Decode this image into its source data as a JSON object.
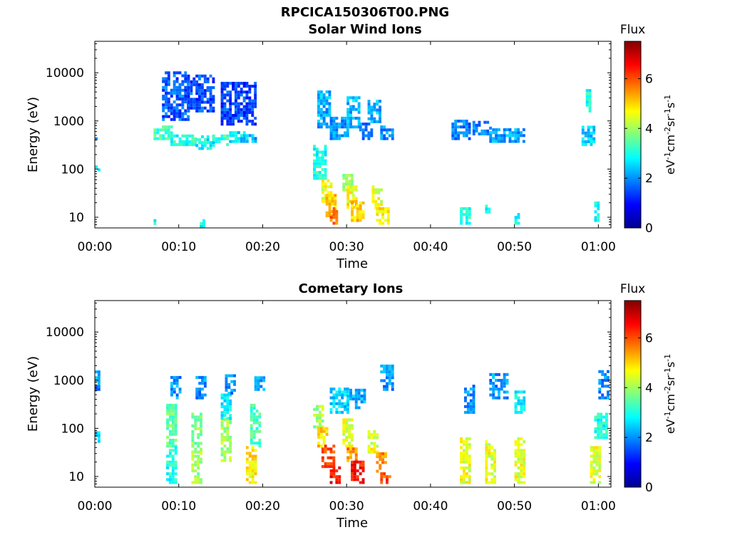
{
  "figure": {
    "title_line1": "RPCICA150306T00.PNG",
    "title_line2": "Solar Wind Ions"
  },
  "chart_data": [
    {
      "type": "heatmap",
      "title": "Solar Wind Ions",
      "xlabel": "Time",
      "ylabel": "Energy (eV)",
      "x_ticks": [
        "00:00",
        "00:10",
        "00:20",
        "00:30",
        "00:40",
        "00:50",
        "01:00"
      ],
      "y_ticks": [
        "10",
        "100",
        "1000",
        "10000"
      ],
      "y_scale": "log",
      "xlim_minutes": [
        0,
        61.5
      ],
      "ylim": [
        6,
        45000
      ],
      "colorbar": {
        "title": "Flux",
        "label": "eV-1cm-2sr-1s-1",
        "ticks": [
          "0",
          "2",
          "4",
          "6"
        ],
        "range": [
          0,
          7.5
        ]
      },
      "blobs": [
        {
          "t": [
            7,
            9
          ],
          "e": [
            400,
            700
          ],
          "v": 3.3
        },
        {
          "t": [
            9,
            10.5
          ],
          "e": [
            300,
            500
          ],
          "v": 3
        },
        {
          "t": [
            10.5,
            12
          ],
          "e": [
            300,
            500
          ],
          "v": 3.1
        },
        {
          "t": [
            12,
            14
          ],
          "e": [
            250,
            450
          ],
          "v": 2.8
        },
        {
          "t": [
            14,
            16
          ],
          "e": [
            300,
            500
          ],
          "v": 3.2
        },
        {
          "t": [
            16,
            18
          ],
          "e": [
            350,
            600
          ],
          "v": 2.6
        },
        {
          "t": [
            18,
            19
          ],
          "e": [
            350,
            500
          ],
          "v": 2.2
        },
        {
          "t": [
            8,
            11
          ],
          "e": [
            1000,
            10000
          ],
          "v": 1.6
        },
        {
          "t": [
            11,
            14
          ],
          "e": [
            1500,
            8000
          ],
          "v": 1.5
        },
        {
          "t": [
            15,
            19
          ],
          "e": [
            800,
            6000
          ],
          "v": 1.4
        },
        {
          "t": [
            26,
            27.5
          ],
          "e": [
            60,
            300
          ],
          "v": 3
        },
        {
          "t": [
            27,
            28
          ],
          "e": [
            20,
            60
          ],
          "v": 4.5
        },
        {
          "t": [
            27.5,
            28.5
          ],
          "e": [
            10,
            30
          ],
          "v": 5
        },
        {
          "t": [
            28,
            28.8
          ],
          "e": [
            7,
            15
          ],
          "v": 5.8
        },
        {
          "t": [
            29.5,
            30.5
          ],
          "e": [
            30,
            70
          ],
          "v": 4
        },
        {
          "t": [
            30,
            31
          ],
          "e": [
            15,
            40
          ],
          "v": 4.8
        },
        {
          "t": [
            30.5,
            32
          ],
          "e": [
            8,
            20
          ],
          "v": 5
        },
        {
          "t": [
            33,
            34
          ],
          "e": [
            15,
            40
          ],
          "v": 4.5
        },
        {
          "t": [
            33.5,
            35
          ],
          "e": [
            7,
            15
          ],
          "v": 4.8
        },
        {
          "t": [
            26.5,
            28
          ],
          "e": [
            700,
            4000
          ],
          "v": 2.2
        },
        {
          "t": [
            28,
            30
          ],
          "e": [
            400,
            1200
          ],
          "v": 2
        },
        {
          "t": [
            30,
            31.5
          ],
          "e": [
            700,
            3000
          ],
          "v": 2.3
        },
        {
          "t": [
            31.5,
            33
          ],
          "e": [
            400,
            900
          ],
          "v": 1.9
        },
        {
          "t": [
            32.5,
            34
          ],
          "e": [
            900,
            2500
          ],
          "v": 2.2
        },
        {
          "t": [
            34,
            35.5
          ],
          "e": [
            400,
            800
          ],
          "v": 2
        },
        {
          "t": [
            42.5,
            44.5
          ],
          "e": [
            400,
            1000
          ],
          "v": 1.8
        },
        {
          "t": [
            45,
            47
          ],
          "e": [
            500,
            1000
          ],
          "v": 1.8
        },
        {
          "t": [
            47,
            51
          ],
          "e": [
            350,
            700
          ],
          "v": 2.1
        },
        {
          "t": [
            43.5,
            44.5
          ],
          "e": [
            7,
            15
          ],
          "v": 3
        },
        {
          "t": [
            46.5,
            47
          ],
          "e": [
            12,
            20
          ],
          "v": 3
        },
        {
          "t": [
            50,
            50.5
          ],
          "e": [
            7,
            12
          ],
          "v": 2.8
        },
        {
          "t": [
            58,
            59.5
          ],
          "e": [
            300,
            700
          ],
          "v": 2.5
        },
        {
          "t": [
            58.5,
            59
          ],
          "e": [
            1500,
            4000
          ],
          "v": 3
        },
        {
          "t": [
            59.5,
            60
          ],
          "e": [
            8,
            20
          ],
          "v": 3
        },
        {
          "t": [
            0,
            0.5
          ],
          "e": [
            90,
            110
          ],
          "v": 2.5
        },
        {
          "t": [
            0,
            0.3
          ],
          "e": [
            300,
            400
          ],
          "v": 2
        },
        {
          "t": [
            7,
            7.3
          ],
          "e": [
            6,
            8
          ],
          "v": 3
        },
        {
          "t": [
            12.5,
            13
          ],
          "e": [
            6,
            8
          ],
          "v": 3
        }
      ]
    },
    {
      "type": "heatmap",
      "title": "Cometary Ions",
      "xlabel": "Time",
      "ylabel": "Energy (eV)",
      "x_ticks": [
        "00:00",
        "00:10",
        "00:20",
        "00:30",
        "00:40",
        "00:50",
        "01:00"
      ],
      "y_ticks": [
        "10",
        "100",
        "1000",
        "10000"
      ],
      "y_scale": "log",
      "xlim_minutes": [
        0,
        61.5
      ],
      "ylim": [
        6,
        45000
      ],
      "colorbar": {
        "title": "Flux",
        "label": "eV-1cm-2sr-1s-1",
        "ticks": [
          "0",
          "2",
          "4",
          "6"
        ],
        "range": [
          0,
          7.5
        ]
      },
      "blobs": [
        {
          "t": [
            8.5,
            9.5
          ],
          "e": [
            40,
            300
          ],
          "v": 3.5
        },
        {
          "t": [
            8.5,
            9.5
          ],
          "e": [
            7,
            40
          ],
          "v": 3
        },
        {
          "t": [
            9,
            10
          ],
          "e": [
            400,
            1200
          ],
          "v": 2
        },
        {
          "t": [
            11.5,
            12.5
          ],
          "e": [
            30,
            200
          ],
          "v": 3.8
        },
        {
          "t": [
            11.5,
            12.5
          ],
          "e": [
            7,
            30
          ],
          "v": 4
        },
        {
          "t": [
            12,
            13
          ],
          "e": [
            400,
            1200
          ],
          "v": 2
        },
        {
          "t": [
            15,
            16
          ],
          "e": [
            20,
            150
          ],
          "v": 4
        },
        {
          "t": [
            15,
            16
          ],
          "e": [
            150,
            500
          ],
          "v": 2.8
        },
        {
          "t": [
            15.5,
            16.5
          ],
          "e": [
            500,
            1300
          ],
          "v": 2
        },
        {
          "t": [
            18,
            19
          ],
          "e": [
            7,
            40
          ],
          "v": 4.8
        },
        {
          "t": [
            18.5,
            19.5
          ],
          "e": [
            40,
            300
          ],
          "v": 3.3
        },
        {
          "t": [
            19,
            20
          ],
          "e": [
            600,
            1200
          ],
          "v": 2
        },
        {
          "t": [
            26,
            27
          ],
          "e": [
            100,
            300
          ],
          "v": 4
        },
        {
          "t": [
            26.5,
            27.5
          ],
          "e": [
            40,
            100
          ],
          "v": 5
        },
        {
          "t": [
            27,
            28.5
          ],
          "e": [
            15,
            40
          ],
          "v": 6
        },
        {
          "t": [
            28,
            29
          ],
          "e": [
            7,
            15
          ],
          "v": 6.5
        },
        {
          "t": [
            29.5,
            30.5
          ],
          "e": [
            40,
            150
          ],
          "v": 4.5
        },
        {
          "t": [
            30,
            31
          ],
          "e": [
            20,
            40
          ],
          "v": 5.5
        },
        {
          "t": [
            30.5,
            32
          ],
          "e": [
            7,
            20
          ],
          "v": 6.5
        },
        {
          "t": [
            32.5,
            33.5
          ],
          "e": [
            30,
            80
          ],
          "v": 4.5
        },
        {
          "t": [
            33.5,
            34.5
          ],
          "e": [
            12,
            30
          ],
          "v": 5.5
        },
        {
          "t": [
            34,
            35
          ],
          "e": [
            7,
            12
          ],
          "v": 6
        },
        {
          "t": [
            28,
            30
          ],
          "e": [
            200,
            700
          ],
          "v": 2.5
        },
        {
          "t": [
            30,
            32
          ],
          "e": [
            250,
            600
          ],
          "v": 2.3
        },
        {
          "t": [
            34,
            35.5
          ],
          "e": [
            600,
            2000
          ],
          "v": 2
        },
        {
          "t": [
            43.5,
            44.5
          ],
          "e": [
            7,
            60
          ],
          "v": 4.5
        },
        {
          "t": [
            44,
            45
          ],
          "e": [
            200,
            800
          ],
          "v": 2
        },
        {
          "t": [
            46.5,
            47.5
          ],
          "e": [
            7,
            50
          ],
          "v": 4.5
        },
        {
          "t": [
            47,
            49
          ],
          "e": [
            400,
            1400
          ],
          "v": 2
        },
        {
          "t": [
            50,
            51
          ],
          "e": [
            7,
            60
          ],
          "v": 4.5
        },
        {
          "t": [
            50,
            51
          ],
          "e": [
            200,
            600
          ],
          "v": 2.8
        },
        {
          "t": [
            59,
            60
          ],
          "e": [
            7,
            40
          ],
          "v": 4.5
        },
        {
          "t": [
            59.5,
            61
          ],
          "e": [
            60,
            200
          ],
          "v": 3
        },
        {
          "t": [
            60,
            61
          ],
          "e": [
            400,
            1500
          ],
          "v": 2
        },
        {
          "t": [
            0,
            0.5
          ],
          "e": [
            50,
            100
          ],
          "v": 2.5
        },
        {
          "t": [
            0,
            0.5
          ],
          "e": [
            600,
            1400
          ],
          "v": 2
        }
      ]
    }
  ]
}
